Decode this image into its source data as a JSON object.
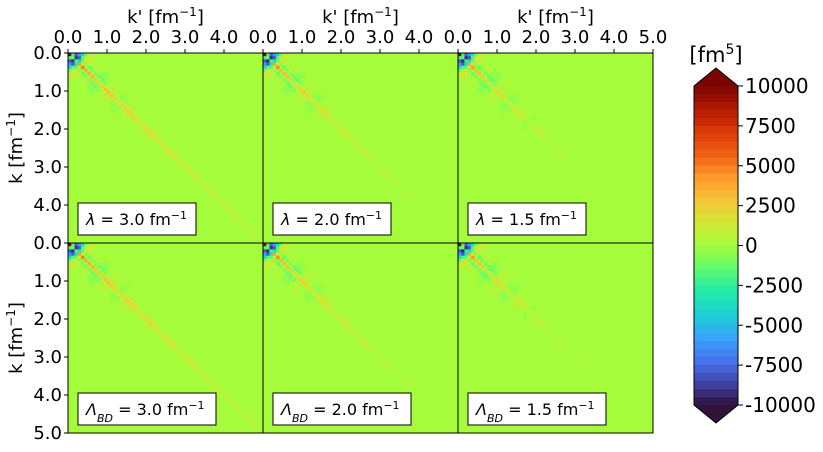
{
  "chart_data": {
    "type": "heatmap",
    "title": "",
    "layout": "2 rows x 3 columns, shared axes",
    "xlabel": "k' [fm",
    "xlabel_sup": "−1",
    "xlabel_tail": "]",
    "ylabel": "k [fm",
    "ylabel_sup": "−1",
    "ylabel_tail": "]",
    "xlim": [
      0.0,
      5.0
    ],
    "ylim": [
      5.0,
      0.0
    ],
    "x_axis_position": "top",
    "x_ticks": [
      0.0,
      1.0,
      2.0,
      3.0,
      4.0,
      5.0
    ],
    "x_tick_labels": [
      [
        "0.0",
        "1.0",
        "2.0",
        "3.0",
        "4.0"
      ],
      [
        "0.0",
        "1.0",
        "2.0",
        "3.0",
        "4.0"
      ],
      [
        "0.0",
        "1.0",
        "2.0",
        "3.0",
        "4.0",
        "5.0"
      ]
    ],
    "y_tick_labels": [
      [
        "0.0",
        "1.0",
        "2.0",
        "3.0",
        "4.0"
      ],
      [
        "0.0",
        "1.0",
        "2.0",
        "3.0",
        "4.0",
        "5.0"
      ]
    ],
    "y_ticks": [
      0.0,
      1.0,
      2.0,
      3.0,
      4.0,
      5.0
    ],
    "colorbar": {
      "label": "[fm",
      "label_sup": "5",
      "label_tail": "]",
      "min": -10000,
      "max": 10000,
      "extend": "both",
      "ticks": [
        10000,
        7500,
        5000,
        2500,
        0,
        -2500,
        -5000,
        -7500,
        -10000
      ],
      "tick_labels": [
        "10000",
        "7500",
        "5000",
        "2500",
        "0",
        "-2500",
        "-5000",
        "-7500",
        "-10000"
      ],
      "colormap": "turbo"
    },
    "panels": [
      {
        "row": 0,
        "col": 0,
        "symbol": "λ",
        "subscript": "",
        "value": 3.0,
        "value_text": " = 3.0 fm",
        "sup": "−1"
      },
      {
        "row": 0,
        "col": 1,
        "symbol": "λ",
        "subscript": "",
        "value": 2.0,
        "value_text": " = 2.0 fm",
        "sup": "−1"
      },
      {
        "row": 0,
        "col": 2,
        "symbol": "λ",
        "subscript": "",
        "value": 1.5,
        "value_text": " = 1.5 fm",
        "sup": "−1"
      },
      {
        "row": 1,
        "col": 0,
        "symbol": "Λ",
        "subscript": "BD",
        "value": 3.0,
        "value_text": " = 3.0 fm",
        "sup": "−1"
      },
      {
        "row": 1,
        "col": 1,
        "symbol": "Λ",
        "subscript": "BD",
        "value": 2.0,
        "value_text": " = 2.0 fm",
        "sup": "−1"
      },
      {
        "row": 1,
        "col": 2,
        "symbol": "Λ",
        "subscript": "BD",
        "value": 1.5,
        "value_text": " = 1.5 fm",
        "sup": "−1"
      }
    ],
    "grid": false,
    "legend": "none"
  }
}
